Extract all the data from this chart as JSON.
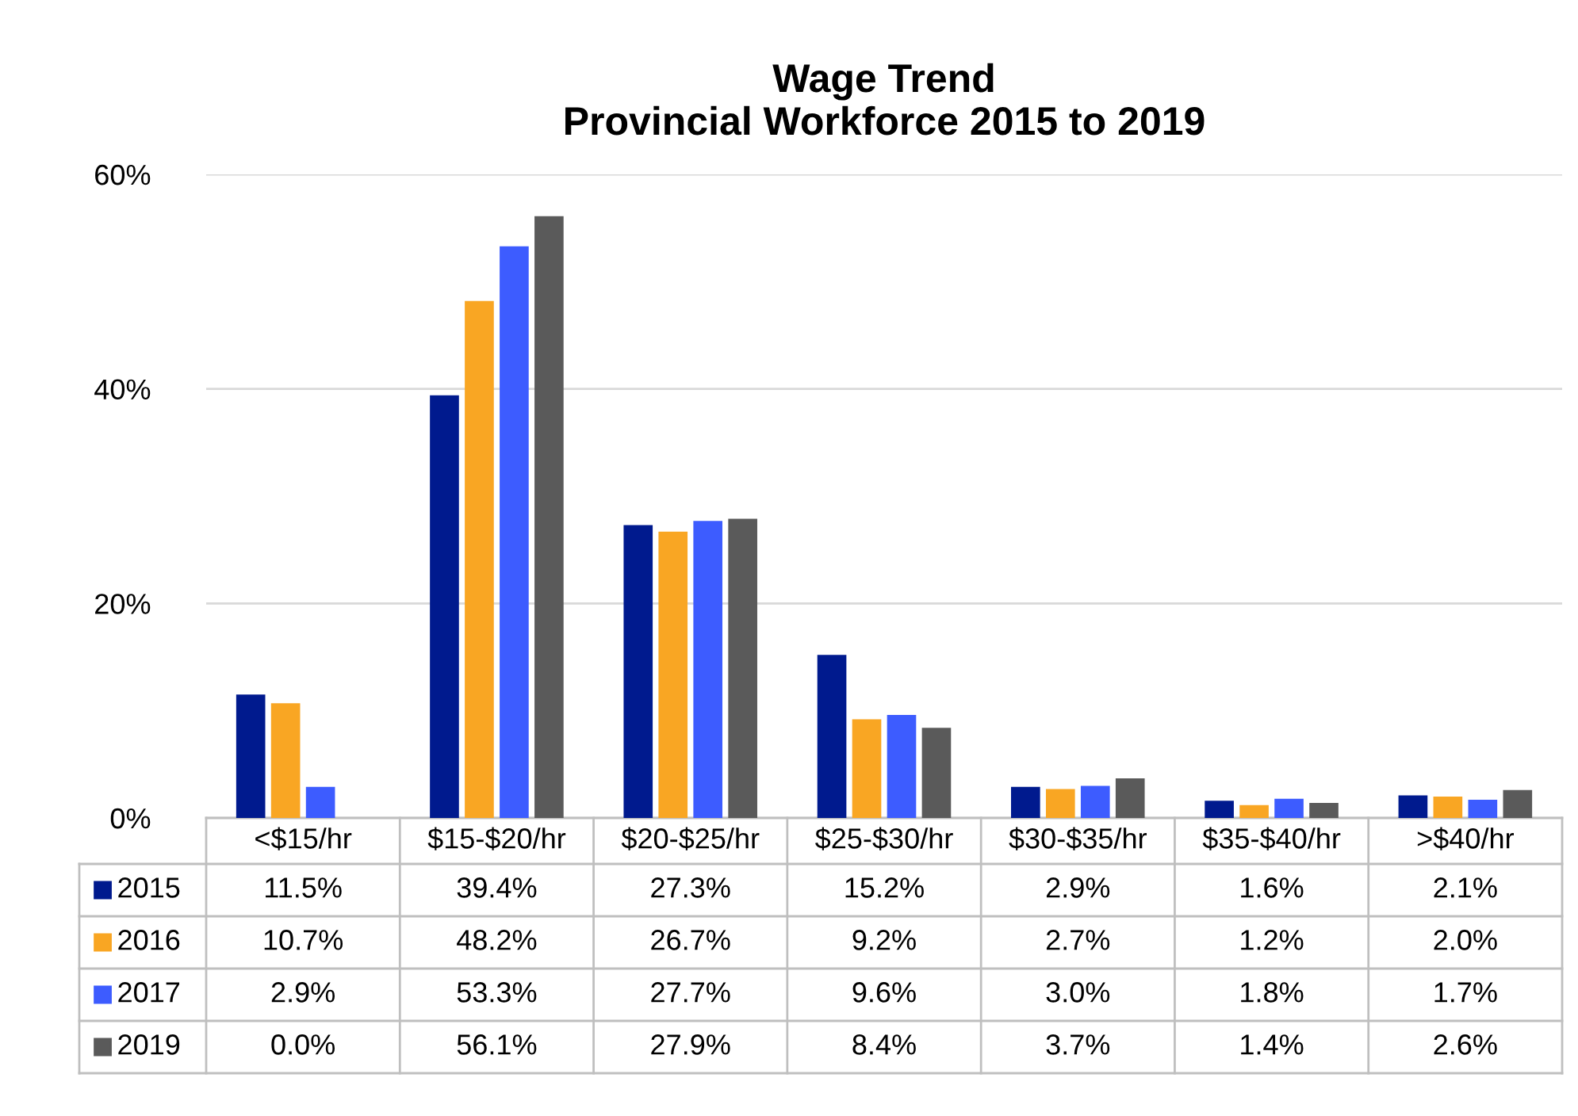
{
  "chart_data": {
    "type": "bar",
    "title": "Wage Trend\nProvincial Workforce 2015 to 2019",
    "categories": [
      "<$15/hr",
      "$15-$20/hr",
      "$20-$25/hr",
      "$25-$30/hr",
      "$30-$35/hr",
      "$35-$40/hr",
      ">$40/hr"
    ],
    "series": [
      {
        "name": "2015",
        "color": "#001a8e",
        "values": [
          11.5,
          39.4,
          27.3,
          15.2,
          2.9,
          1.6,
          2.1
        ],
        "value_labels": [
          "11.5%",
          "39.4%",
          "27.3%",
          "15.2%",
          "2.9%",
          "1.6%",
          "2.1%"
        ]
      },
      {
        "name": "2016",
        "color": "#f9a623",
        "values": [
          10.7,
          48.2,
          26.7,
          9.2,
          2.7,
          1.2,
          2.0
        ],
        "value_labels": [
          "10.7%",
          "48.2%",
          "26.7%",
          "9.2%",
          "2.7%",
          "1.2%",
          "2.0%"
        ]
      },
      {
        "name": "2017",
        "color": "#3d5cff",
        "values": [
          2.9,
          53.3,
          27.7,
          9.6,
          3.0,
          1.8,
          1.7
        ],
        "value_labels": [
          "2.9%",
          "53.3%",
          "27.7%",
          "9.6%",
          "3.0%",
          "1.8%",
          "1.7%"
        ]
      },
      {
        "name": "2019",
        "color": "#5a5a5a",
        "values": [
          0.0,
          56.1,
          27.9,
          8.4,
          3.7,
          1.4,
          2.6
        ],
        "value_labels": [
          "0.0%",
          "56.1%",
          "27.9%",
          "8.4%",
          "3.7%",
          "1.4%",
          "2.6%"
        ]
      }
    ],
    "ylim": [
      0,
      60
    ],
    "yticks": [
      {
        "value": 0,
        "label": "0%"
      },
      {
        "value": 20,
        "label": "20%"
      },
      {
        "value": 40,
        "label": "40%"
      },
      {
        "value": 60,
        "label": "60%"
      }
    ],
    "grid": "y",
    "legend": "bottom"
  }
}
